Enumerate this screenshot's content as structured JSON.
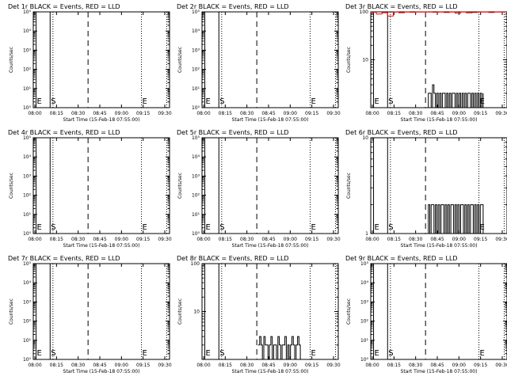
{
  "chart_data": [
    {
      "type": "line",
      "title": "Det 1r BLACK = Events, RED = LLD",
      "xlabel": "Start Time (15-Feb-18 07:55:00)",
      "ylabel": "Counts/sec",
      "x_ticks": [
        "08:00",
        "08:15",
        "08:30",
        "08:45",
        "09:00",
        "09:15",
        "09:30"
      ],
      "xlim": [
        0,
        97
      ],
      "y_scale": "log",
      "y_ticks": [
        "10⁰",
        "10¹",
        "10²",
        "10³",
        "10⁴",
        "10⁵"
      ],
      "ylim": [
        1,
        100000
      ],
      "markers": [
        {
          "label": "E",
          "x": 2,
          "style": "solid"
        },
        {
          "label": "S",
          "x": 12,
          "style": "solid"
        },
        {
          "x": 14,
          "style": "dotted"
        },
        {
          "x": 39,
          "style": "dashed"
        },
        {
          "label": "E",
          "x": 77,
          "style": "dotted"
        },
        {
          "x": 95,
          "style": "dotted"
        }
      ],
      "series": [
        {
          "color": "#000000",
          "x": [],
          "values": []
        },
        {
          "color": "#ff0000",
          "x": [],
          "values": []
        }
      ]
    },
    {
      "type": "line",
      "title": "Det 2r BLACK = Events, RED = LLD",
      "xlabel": "Start Time (15-Feb-18 07:55:00)",
      "ylabel": "Counts/sec",
      "x_ticks": [
        "08:00",
        "08:15",
        "08:30",
        "08:45",
        "09:00",
        "09:15",
        "09:30"
      ],
      "xlim": [
        0,
        97
      ],
      "y_scale": "log",
      "y_ticks": [
        "10⁰",
        "10¹",
        "10²",
        "10³",
        "10⁴",
        "10⁵"
      ],
      "ylim": [
        1,
        100000
      ],
      "markers": [
        {
          "label": "E",
          "x": 2,
          "style": "solid"
        },
        {
          "label": "S",
          "x": 12,
          "style": "solid"
        },
        {
          "x": 14,
          "style": "dotted"
        },
        {
          "x": 39,
          "style": "dashed"
        },
        {
          "label": "E",
          "x": 77,
          "style": "dotted"
        },
        {
          "x": 95,
          "style": "dotted"
        }
      ],
      "series": [
        {
          "color": "#000000",
          "x": [],
          "values": []
        },
        {
          "color": "#ff0000",
          "x": [],
          "values": []
        }
      ]
    },
    {
      "type": "line",
      "title": "Det 3r BLACK = Events, RED = LLD",
      "xlabel": "Start Time (15-Feb-18 07:55:00)",
      "ylabel": "Counts/sec",
      "x_ticks": [
        "08:00",
        "08:15",
        "08:30",
        "08:45",
        "09:00",
        "09:15",
        "09:30"
      ],
      "xlim": [
        0,
        97
      ],
      "y_scale": "log",
      "y_ticks": [
        "10",
        "100"
      ],
      "ylim": [
        1,
        100
      ],
      "markers": [
        {
          "label": "E",
          "x": 2,
          "style": "solid"
        },
        {
          "label": "S",
          "x": 12,
          "style": "solid"
        },
        {
          "x": 14,
          "style": "dotted"
        },
        {
          "x": 39,
          "style": "dashed"
        },
        {
          "label": "E",
          "x": 77,
          "style": "dotted"
        },
        {
          "x": 95,
          "style": "dotted"
        }
      ],
      "series": [
        {
          "color": "#000000",
          "x": [
            40,
            41,
            42,
            43,
            44,
            45,
            46,
            47,
            48,
            49,
            50,
            51,
            52,
            53,
            54,
            55,
            56,
            57,
            58,
            59,
            60,
            61,
            62,
            63,
            64,
            65,
            66,
            67,
            68,
            69,
            70,
            71,
            72,
            73,
            74,
            75,
            76,
            77,
            78,
            79,
            80
          ],
          "values": [
            1,
            2,
            2,
            1,
            3,
            2,
            1,
            2,
            1,
            2,
            1,
            2,
            2,
            1,
            2,
            1,
            2,
            1,
            2,
            2,
            1,
            2,
            1,
            2,
            1,
            2,
            1,
            2,
            1,
            2,
            2,
            1,
            2,
            1,
            2,
            1,
            2,
            1,
            2,
            1,
            2
          ]
        },
        {
          "color": "#ff0000",
          "x": [
            0,
            4,
            8,
            12,
            16,
            20,
            24,
            28,
            32,
            36,
            40,
            44,
            48,
            52,
            56,
            60,
            64,
            68,
            72,
            76,
            80,
            84,
            88,
            92,
            96
          ],
          "values": [
            98,
            90,
            96,
            82,
            99,
            96,
            99,
            98,
            99,
            99,
            99,
            98,
            99,
            97,
            99,
            94,
            99,
            95,
            97,
            99,
            99,
            97,
            99,
            99,
            98
          ]
        }
      ]
    },
    {
      "type": "line",
      "title": "Det 4r BLACK = Events, RED = LLD",
      "xlabel": "Start Time (15-Feb-18 07:55:00)",
      "ylabel": "Counts/sec",
      "x_ticks": [
        "08:00",
        "08:15",
        "08:30",
        "08:45",
        "09:00",
        "09:15",
        "09:30"
      ],
      "xlim": [
        0,
        97
      ],
      "y_scale": "log",
      "y_ticks": [
        "10⁰",
        "10¹",
        "10²",
        "10³",
        "10⁴",
        "10⁵"
      ],
      "ylim": [
        1,
        100000
      ],
      "markers": [
        {
          "label": "E",
          "x": 2,
          "style": "solid"
        },
        {
          "label": "S",
          "x": 12,
          "style": "solid"
        },
        {
          "x": 14,
          "style": "dotted"
        },
        {
          "x": 39,
          "style": "dashed"
        },
        {
          "label": "E",
          "x": 77,
          "style": "dotted"
        },
        {
          "x": 95,
          "style": "dotted"
        }
      ],
      "series": [
        {
          "color": "#000000",
          "x": [],
          "values": []
        },
        {
          "color": "#ff0000",
          "x": [],
          "values": []
        }
      ]
    },
    {
      "type": "line",
      "title": "Det 5r BLACK = Events, RED = LLD",
      "xlabel": "Start Time (15-Feb-18 07:55:00)",
      "ylabel": "Counts/sec",
      "x_ticks": [
        "08:00",
        "08:15",
        "08:30",
        "08:45",
        "09:00",
        "09:15",
        "09:30"
      ],
      "xlim": [
        0,
        97
      ],
      "y_scale": "log",
      "y_ticks": [
        "10⁰",
        "10¹",
        "10²",
        "10³",
        "10⁴",
        "10⁵"
      ],
      "ylim": [
        1,
        100000
      ],
      "markers": [
        {
          "label": "E",
          "x": 2,
          "style": "solid"
        },
        {
          "label": "S",
          "x": 12,
          "style": "solid"
        },
        {
          "x": 14,
          "style": "dotted"
        },
        {
          "x": 39,
          "style": "dashed"
        },
        {
          "label": "E",
          "x": 77,
          "style": "dotted"
        },
        {
          "x": 95,
          "style": "dotted"
        }
      ],
      "series": [
        {
          "color": "#000000",
          "x": [],
          "values": []
        },
        {
          "color": "#ff0000",
          "x": [],
          "values": []
        }
      ]
    },
    {
      "type": "line",
      "title": "Det 6r BLACK = Events, RED = LLD",
      "xlabel": "Start Time (15-Feb-18 07:55:00)",
      "ylabel": "Counts/sec",
      "x_ticks": [
        "08:00",
        "08:15",
        "08:30",
        "08:45",
        "09:00",
        "09:15",
        "09:30"
      ],
      "xlim": [
        0,
        97
      ],
      "y_scale": "log",
      "y_ticks": [
        "1",
        "10"
      ],
      "ylim": [
        1,
        10
      ],
      "markers": [
        {
          "label": "E",
          "x": 2,
          "style": "solid"
        },
        {
          "label": "S",
          "x": 12,
          "style": "solid"
        },
        {
          "x": 14,
          "style": "dotted"
        },
        {
          "x": 39,
          "style": "dashed"
        },
        {
          "label": "E",
          "x": 77,
          "style": "dotted"
        },
        {
          "x": 95,
          "style": "dotted"
        }
      ],
      "series": [
        {
          "color": "#000000",
          "x": [
            40,
            41,
            42,
            43,
            44,
            45,
            46,
            47,
            48,
            49,
            50,
            51,
            52,
            53,
            54,
            55,
            56,
            57,
            58,
            59,
            60,
            61,
            62,
            63,
            64,
            65,
            66,
            67,
            68,
            69,
            70,
            71,
            72,
            73,
            74,
            75,
            76,
            77,
            78,
            79,
            80
          ],
          "values": [
            1,
            2,
            1,
            2,
            2,
            1,
            2,
            1,
            2,
            1,
            2,
            2,
            1,
            2,
            1,
            2,
            1,
            2,
            2,
            1,
            2,
            1,
            2,
            1,
            2,
            2,
            1,
            2,
            1,
            2,
            1,
            2,
            2,
            1,
            2,
            1,
            2,
            1,
            2,
            2,
            1
          ]
        },
        {
          "color": "#ff0000",
          "x": [],
          "values": []
        }
      ]
    },
    {
      "type": "line",
      "title": "Det 7r BLACK = Events, RED = LLD",
      "xlabel": "Start Time (15-Feb-18 07:55:00)",
      "ylabel": "Counts/sec",
      "x_ticks": [
        "08:00",
        "08:15",
        "08:30",
        "08:45",
        "09:00",
        "09:15",
        "09:30"
      ],
      "xlim": [
        0,
        97
      ],
      "y_scale": "log",
      "y_ticks": [
        "10⁰",
        "10¹",
        "10²",
        "10³",
        "10⁴",
        "10⁵"
      ],
      "ylim": [
        1,
        100000
      ],
      "markers": [
        {
          "label": "E",
          "x": 2,
          "style": "solid"
        },
        {
          "label": "S",
          "x": 12,
          "style": "solid"
        },
        {
          "x": 14,
          "style": "dotted"
        },
        {
          "x": 39,
          "style": "dashed"
        },
        {
          "label": "E",
          "x": 77,
          "style": "dotted"
        },
        {
          "x": 95,
          "style": "dotted"
        }
      ],
      "series": [
        {
          "color": "#000000",
          "x": [],
          "values": []
        },
        {
          "color": "#ff0000",
          "x": [],
          "values": []
        }
      ]
    },
    {
      "type": "line",
      "title": "Det 8r BLACK = Events, RED = LLD",
      "xlabel": "Start Time (15-Feb-18 07:55:00)",
      "ylabel": "Counts/sec",
      "x_ticks": [
        "08:00",
        "08:15",
        "08:30",
        "08:45",
        "09:00",
        "09:15",
        "09:30"
      ],
      "xlim": [
        0,
        97
      ],
      "y_scale": "log",
      "y_ticks": [
        "10",
        "100"
      ],
      "ylim": [
        1,
        100
      ],
      "markers": [
        {
          "label": "E",
          "x": 2,
          "style": "solid"
        },
        {
          "label": "S",
          "x": 12,
          "style": "solid"
        },
        {
          "x": 14,
          "style": "dotted"
        },
        {
          "x": 39,
          "style": "dashed"
        },
        {
          "label": "E",
          "x": 77,
          "style": "dotted"
        },
        {
          "x": 95,
          "style": "dotted"
        }
      ],
      "series": [
        {
          "color": "#000000",
          "x": [
            40,
            41,
            42,
            43,
            44,
            45,
            46,
            47,
            48,
            49,
            50,
            51,
            52,
            53,
            54,
            55,
            56,
            57,
            58,
            59,
            60,
            61,
            62,
            63,
            64,
            65,
            66,
            67,
            68,
            69,
            70
          ],
          "values": [
            2,
            3,
            2,
            1,
            3,
            2,
            2,
            1,
            2,
            3,
            1,
            2,
            2,
            1,
            3,
            2,
            1,
            2,
            2,
            3,
            1,
            2,
            1,
            2,
            3,
            2,
            1,
            2,
            3,
            2,
            1
          ]
        },
        {
          "color": "#ff0000",
          "x": [],
          "values": []
        }
      ]
    },
    {
      "type": "line",
      "title": "Det 9r BLACK = Events, RED = LLD",
      "xlabel": "Start Time (15-Feb-18 07:55:00)",
      "ylabel": "Counts/sec",
      "x_ticks": [
        "08:00",
        "08:15",
        "08:30",
        "08:45",
        "09:00",
        "09:15",
        "09:30"
      ],
      "xlim": [
        0,
        97
      ],
      "y_scale": "log",
      "y_ticks": [
        "10⁰",
        "10¹",
        "10²",
        "10³",
        "10⁴",
        "10⁵"
      ],
      "ylim": [
        1,
        100000
      ],
      "markers": [
        {
          "label": "E",
          "x": 2,
          "style": "solid"
        },
        {
          "label": "S",
          "x": 12,
          "style": "solid"
        },
        {
          "x": 14,
          "style": "dotted"
        },
        {
          "x": 39,
          "style": "dashed"
        },
        {
          "label": "E",
          "x": 77,
          "style": "dotted"
        },
        {
          "x": 95,
          "style": "dotted"
        }
      ],
      "series": [
        {
          "color": "#000000",
          "x": [],
          "values": []
        },
        {
          "color": "#ff0000",
          "x": [],
          "values": []
        }
      ]
    }
  ]
}
